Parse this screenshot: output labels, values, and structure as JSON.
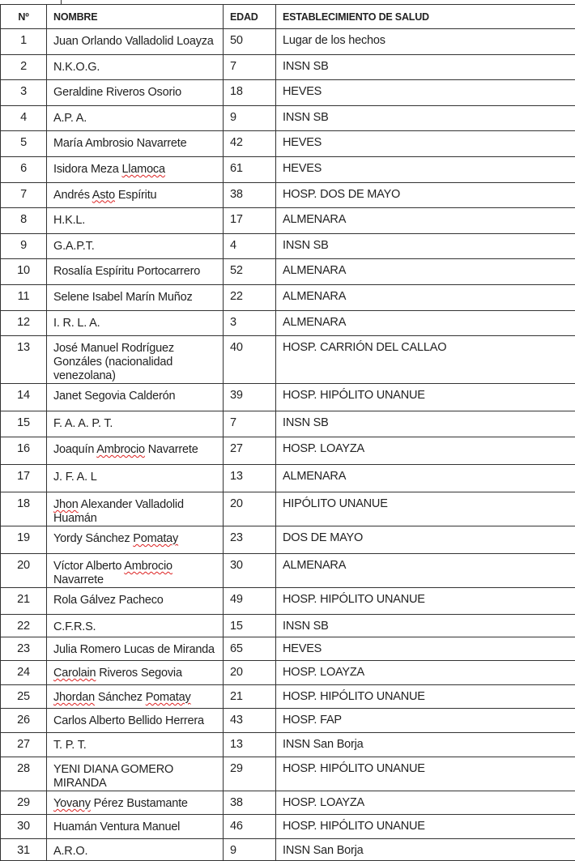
{
  "table": {
    "headers": [
      "Nº",
      "NOMBRE",
      "EDAD",
      "ESTABLECIMIENTO DE SALUD"
    ],
    "rows": [
      {
        "n": "1",
        "nombre": "Juan Orlando Valladolid Loayza",
        "edad": "50",
        "establecimiento": "Lugar de los hechos"
      },
      {
        "n": "2",
        "nombre": "N.K.O.G.",
        "edad": " 7",
        "establecimiento": "INSN SB"
      },
      {
        "n": "3",
        "nombre": "Geraldine Riveros Osorio",
        "edad": "18",
        "establecimiento": "HEVES"
      },
      {
        "n": "4",
        "nombre": "A.P. A.",
        "edad": " 9",
        "establecimiento": "INSN SB"
      },
      {
        "n": "5",
        "nombre": "María Ambrosio Navarrete",
        "edad": "42",
        "establecimiento": "HEVES"
      },
      {
        "n": "6",
        "nombre": "Isidora Meza Llamoca",
        "edad": "61",
        "establecimiento": "HEVES",
        "flagged": [
          "Llamoca"
        ]
      },
      {
        "n": "7",
        "nombre": "Andrés Asto Espíritu",
        "edad": "38",
        "establecimiento": "HOSP. DOS DE MAYO",
        "flagged": [
          "Asto"
        ]
      },
      {
        "n": "8",
        "nombre": "H.K.L.",
        "edad": "17",
        "establecimiento": "ALMENARA"
      },
      {
        "n": "9",
        "nombre": "G.A.P.T.",
        "edad": "4",
        "establecimiento": "INSN SB"
      },
      {
        "n": "10",
        "nombre": "Rosalía Espíritu Portocarrero",
        "edad": "52",
        "establecimiento": "ALMENARA"
      },
      {
        "n": "11",
        "nombre": "Selene Isabel Marín Muñoz",
        "edad": "22",
        "establecimiento": "ALMENARA"
      },
      {
        "n": "12",
        "nombre": "I. R. L. A.",
        "edad": "3",
        "establecimiento": "ALMENARA"
      },
      {
        "n": "13",
        "nombre": "José Manuel Rodríguez Gonzáles (nacionalidad venezolana)",
        "edad": "40",
        "establecimiento": "HOSP. CARRIÓN DEL CALLAO"
      },
      {
        "n": "14",
        "nombre": "Janet Segovia Calderón",
        "edad": "39",
        "establecimiento": "HOSP. HIPÓLITO UNANUE"
      },
      {
        "n": "15",
        "nombre": "F. A. A. P. T.",
        "edad": "7",
        "establecimiento": "INSN SB"
      },
      {
        "n": "16",
        "nombre": "Joaquín Ambrocio Navarrete",
        "edad": "27",
        "establecimiento": "HOSP. LOAYZA",
        "flagged": [
          "Ambrocio"
        ]
      },
      {
        "n": "17",
        "nombre": "J. F. A. L",
        "edad": "13",
        "establecimiento": "ALMENARA"
      },
      {
        "n": "18",
        "nombre": "Jhon Alexander Valladolid Huamán",
        "edad": "20",
        "establecimiento": "HIPÓLITO UNANUE",
        "flagged": [
          "Jhon"
        ]
      },
      {
        "n": "19",
        "nombre": "Yordy Sánchez Pomatay",
        "edad": "23",
        "establecimiento": "DOS DE MAYO",
        "flagged": [
          "Pomatay"
        ]
      },
      {
        "n": "20",
        "nombre": "Víctor Alberto Ambrocio Navarrete",
        "edad": "30",
        "establecimiento": "ALMENARA",
        "flagged": [
          "Ambrocio"
        ]
      },
      {
        "n": "21",
        "nombre": "Rola Gálvez Pacheco",
        "edad": "49",
        "establecimiento": "HOSP. HIPÓLITO UNANUE"
      },
      {
        "n": "22",
        "nombre": "C.F.R.S.",
        "edad": "15",
        "establecimiento": "INSN SB"
      },
      {
        "n": "23",
        "nombre": "Julia Romero Lucas de Miranda",
        "edad": "65",
        "establecimiento": "HEVES"
      },
      {
        "n": "24",
        "nombre": "Carolain Riveros Segovia",
        "edad": "20",
        "establecimiento": "HOSP. LOAYZA",
        "flagged": [
          "Carolain"
        ]
      },
      {
        "n": "25",
        "nombre": "Jhordan Sánchez Pomatay",
        "edad": "21",
        "establecimiento": "HOSP. HIPÓLITO UNANUE",
        "flagged": [
          "Jhordan",
          "Pomatay"
        ]
      },
      {
        "n": "26",
        "nombre": "Carlos Alberto Bellido Herrera",
        "edad": "43",
        "establecimiento": "HOSP. FAP"
      },
      {
        "n": "27",
        "nombre": "T. P. T.",
        "edad": "13",
        "establecimiento": "INSN San Borja"
      },
      {
        "n": "28",
        "nombre": "YENI DIANA GOMERO MIRANDA",
        "edad": "29",
        "establecimiento": "HOSP. HIPÓLITO UNANUE"
      },
      {
        "n": "29",
        "nombre": "Yovany Pérez Bustamante",
        "edad": "38",
        "establecimiento": "HOSP. LOAYZA",
        "flagged": [
          "Yovany"
        ]
      },
      {
        "n": "30",
        "nombre": "Huamán Ventura Manuel",
        "edad": "46",
        "establecimiento": "HOSP. HIPÓLITO UNANUE"
      },
      {
        "n": "31",
        "nombre": "A.R.O.",
        "edad": "9",
        "establecimiento": "INSN San Borja"
      }
    ]
  },
  "spellcheck_underline_color": "#dd2222"
}
